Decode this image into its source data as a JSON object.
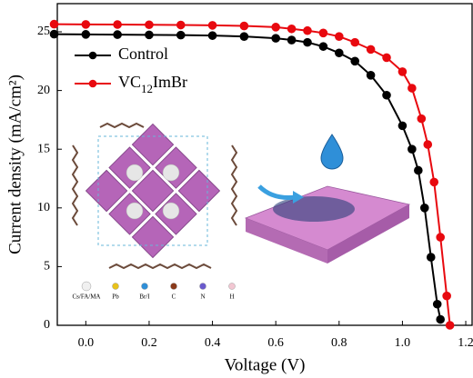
{
  "chart_data": {
    "type": "line",
    "xlabel": "Voltage  (V)",
    "ylabel": "Current density  (mA/cm²)",
    "xlim": [
      -0.09,
      1.22
    ],
    "ylim": [
      0,
      27.4
    ],
    "xticks": [
      {
        "value": 0,
        "label": "0.0"
      },
      0.2,
      0.4,
      0.6,
      0.8,
      {
        "value": 1,
        "label": "1.0"
      },
      1.2
    ],
    "yticks": [
      0,
      5,
      10,
      15,
      20,
      25
    ],
    "legend": "upper left",
    "series": [
      {
        "name": "Control",
        "color": "#000000",
        "x": [
          -0.1,
          0,
          0.1,
          0.2,
          0.3,
          0.4,
          0.5,
          0.6,
          0.65,
          0.7,
          0.75,
          0.8,
          0.85,
          0.9,
          0.95,
          1.0,
          1.03,
          1.05,
          1.07,
          1.09,
          1.11,
          1.12
        ],
        "values": [
          24.8,
          24.78,
          24.76,
          24.74,
          24.72,
          24.68,
          24.6,
          24.45,
          24.3,
          24.1,
          23.75,
          23.2,
          22.5,
          21.3,
          19.6,
          17.0,
          15.0,
          13.2,
          10.0,
          5.8,
          1.8,
          0.5
        ]
      },
      {
        "name": "VC12ImBr",
        "color": "#e8090f",
        "x": [
          -0.1,
          0,
          0.1,
          0.2,
          0.3,
          0.4,
          0.5,
          0.6,
          0.65,
          0.7,
          0.75,
          0.8,
          0.85,
          0.9,
          0.95,
          1.0,
          1.03,
          1.06,
          1.08,
          1.1,
          1.12,
          1.14,
          1.15
        ],
        "values": [
          25.65,
          25.63,
          25.62,
          25.6,
          25.58,
          25.55,
          25.5,
          25.4,
          25.25,
          25.1,
          24.9,
          24.6,
          24.1,
          23.5,
          22.8,
          21.6,
          20.2,
          17.6,
          15.4,
          12.2,
          7.5,
          2.5,
          0
        ]
      }
    ]
  },
  "illustration": {
    "legend": [
      "Cs/FA/MA",
      "Pb",
      "Br/I",
      "C",
      "N",
      "H"
    ]
  }
}
